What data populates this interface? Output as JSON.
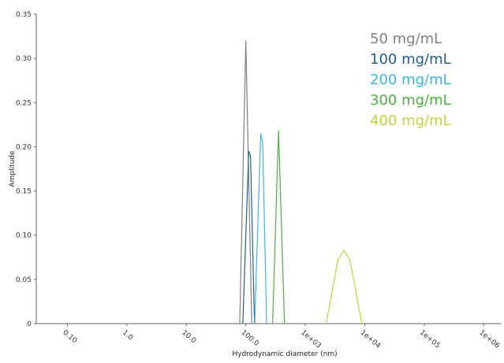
{
  "chart_data": {
    "type": "line",
    "xlabel": "Hydrodynamic diameter (nm)",
    "ylabel": "Amplitude",
    "x_scale": "log",
    "xlim": [
      0.03,
      2000000
    ],
    "ylim": [
      0,
      0.35
    ],
    "x_ticks": [
      {
        "value": 0.1,
        "label": "0.10"
      },
      {
        "value": 1,
        "label": "1.0"
      },
      {
        "value": 10,
        "label": "10.0"
      },
      {
        "value": 100,
        "label": "100.0"
      },
      {
        "value": 1000,
        "label": "1e+03"
      },
      {
        "value": 10000,
        "label": "1e+04"
      },
      {
        "value": 100000,
        "label": "1e+05"
      },
      {
        "value": 1000000,
        "label": "1e+06"
      }
    ],
    "y_ticks": [
      {
        "value": 0,
        "label": "0"
      },
      {
        "value": 0.05,
        "label": "0.05"
      },
      {
        "value": 0.1,
        "label": "0.10"
      },
      {
        "value": 0.15,
        "label": "0.15"
      },
      {
        "value": 0.2,
        "label": "0.20"
      },
      {
        "value": 0.25,
        "label": "0.25"
      },
      {
        "value": 0.3,
        "label": "0.30"
      },
      {
        "value": 0.35,
        "label": "0.35"
      }
    ],
    "grid": false,
    "legend_position": "top-right",
    "series": [
      {
        "name": "50 mg/mL",
        "color": "#808080",
        "points": [
          [
            79,
            0
          ],
          [
            100,
            0.32
          ],
          [
            126,
            0
          ]
        ]
      },
      {
        "name": "100 mg/mL",
        "color": "#1f5f8b",
        "points": [
          [
            89,
            0
          ],
          [
            112,
            0.195
          ],
          [
            120,
            0.19
          ],
          [
            140,
            0
          ]
        ]
      },
      {
        "name": "200 mg/mL",
        "color": "#3db4e6",
        "points": [
          [
            141,
            0
          ],
          [
            178,
            0.215
          ],
          [
            192,
            0.205
          ],
          [
            224,
            0
          ]
        ]
      },
      {
        "name": "300 mg/mL",
        "color": "#4caf3f",
        "points": [
          [
            282,
            0
          ],
          [
            355,
            0.218
          ],
          [
            447,
            0
          ]
        ]
      },
      {
        "name": "400 mg/mL",
        "color": "#bcd63a",
        "points": [
          [
            2239,
            0
          ],
          [
            3548,
            0.072
          ],
          [
            4467,
            0.083
          ],
          [
            5623,
            0.072
          ],
          [
            8913,
            0
          ]
        ]
      }
    ]
  }
}
